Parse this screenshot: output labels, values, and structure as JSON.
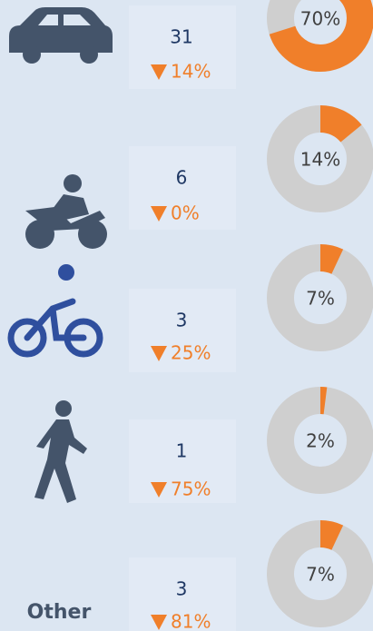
{
  "rows": [
    {
      "count": 31,
      "change": "14%",
      "share": 70,
      "share_label": "70%"
    },
    {
      "count": 6,
      "change": "0%",
      "share": 14,
      "share_label": "14%"
    },
    {
      "count": 3,
      "change": "25%",
      "share": 7,
      "share_label": "7%"
    },
    {
      "count": 1,
      "change": "75%",
      "share": 2,
      "share_label": "2%"
    },
    {
      "count": 3,
      "change": "81%",
      "share": 7,
      "share_label": "7%",
      "name": "Other"
    }
  ]
}
